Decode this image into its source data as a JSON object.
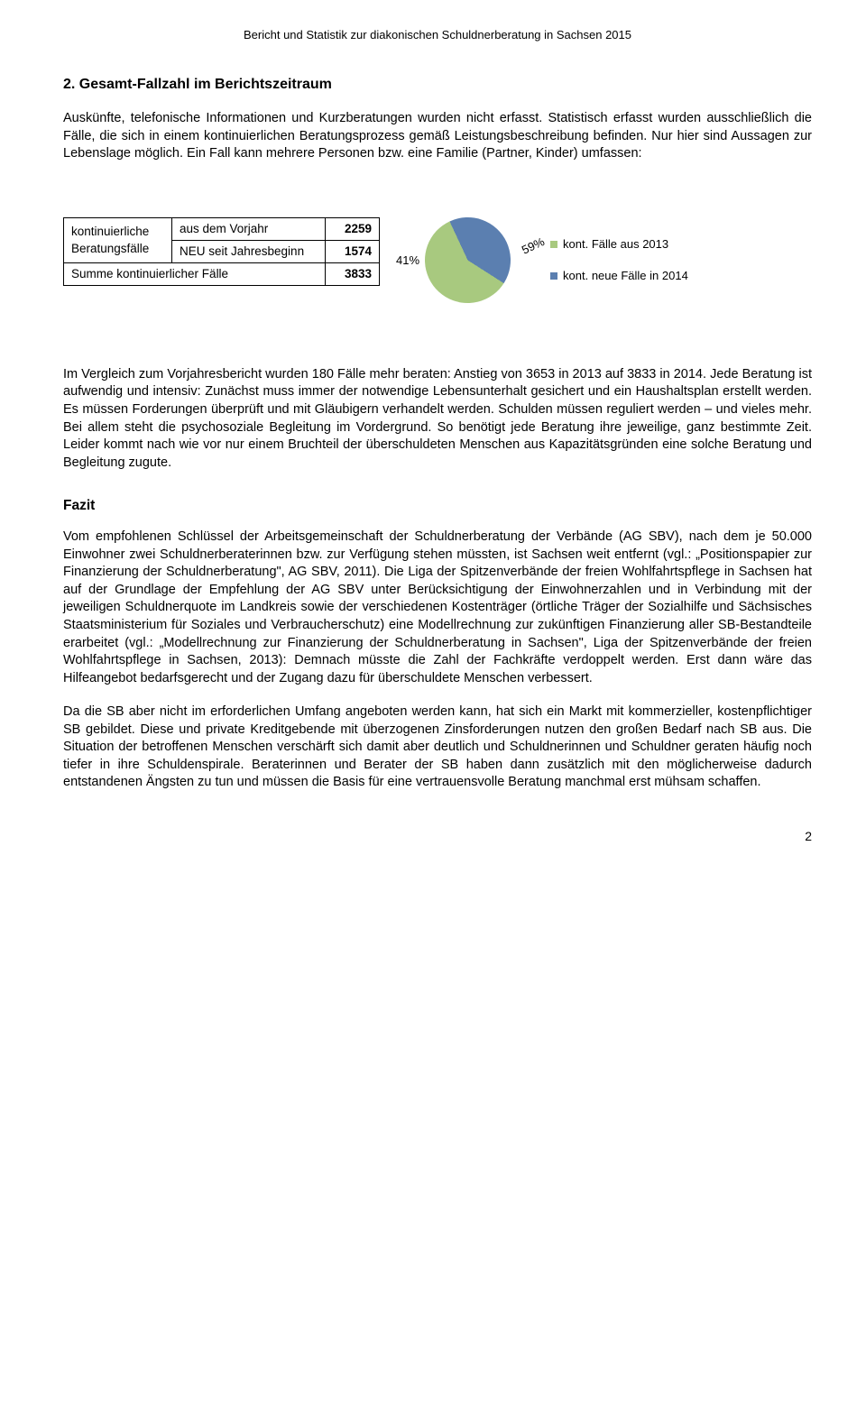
{
  "header": "Bericht und Statistik zur diakonischen Schuldnerberatung in Sachsen 2015",
  "section_title": "2. Gesamt-Fallzahl im Berichtszeitraum",
  "intro_para": "Auskünfte, telefonische Informationen und Kurzberatungen wurden nicht erfasst. Statistisch erfasst wurden ausschließlich die Fälle, die sich in einem kontinuierlichen Beratungsprozess gemäß Leistungsbeschreibung befinden. Nur hier sind Aussagen zur Lebenslage möglich. Ein Fall kann mehrere Personen bzw. eine Familie (Partner, Kinder) umfassen:",
  "table": {
    "row_label": "kontinuierliche Beratungsfälle",
    "rows": [
      {
        "label": "aus dem Vorjahr",
        "value": "2259"
      },
      {
        "label": "NEU seit Jahresbeginn",
        "value": "1574"
      }
    ],
    "sum_label": "Summe kontinuierlicher Fälle",
    "sum_value": "3833"
  },
  "pie": {
    "label_41": "41%",
    "label_59": "59%",
    "slice_59_color": "#a8c97f",
    "slice_41_color": "#5b7fb0",
    "slice_59_deg": 212.4,
    "legend": [
      {
        "color": "#a8c97f",
        "text": "kont. Fälle aus 2013"
      },
      {
        "color": "#5b7fb0",
        "text": "kont. neue Fälle in 2014"
      }
    ]
  },
  "para2": "Im Vergleich zum Vorjahresbericht wurden 180 Fälle mehr beraten: Anstieg von 3653 in 2013 auf 3833 in 2014. Jede Beratung ist aufwendig und intensiv: Zunächst muss immer der notwendige Lebensunterhalt gesichert und ein Haushaltsplan erstellt werden. Es müssen Forderungen überprüft und mit Gläubigern verhandelt werden. Schulden müssen reguliert werden – und vieles mehr. Bei allem steht die psychosoziale Begleitung im Vordergrund. So benötigt jede Beratung ihre jeweilige, ganz bestimmte Zeit. Leider kommt nach wie vor nur einem Bruchteil der überschuldeten Menschen aus Kapazitätsgründen eine solche Beratung und Begleitung zugute.",
  "fazit_title": "Fazit",
  "para3": "Vom empfohlenen Schlüssel der Arbeitsgemeinschaft der Schuldnerberatung der Verbände (AG SBV), nach dem je 50.000 Einwohner zwei Schuldnerberaterinnen bzw. zur Verfügung stehen müssten, ist Sachsen weit entfernt (vgl.: „Positionspapier zur Finanzierung der Schuldnerberatung\", AG SBV, 2011). Die Liga der Spitzenverbände der freien Wohlfahrtspflege in Sachsen hat auf der Grundlage der Empfehlung der AG SBV unter Berücksichtigung der Einwohnerzahlen und in Verbindung mit der jeweiligen Schuldnerquote im Landkreis sowie der verschiedenen Kostenträger (örtliche Träger der Sozialhilfe und Sächsisches Staatsministerium für Soziales und Verbraucherschutz) eine Modellrechnung zur zukünftigen Finanzierung aller SB-Bestandteile erarbeitet (vgl.: „Modellrechnung zur Finanzierung der Schuldnerberatung in Sachsen\", Liga der Spitzenverbände der freien Wohlfahrtspflege in Sachsen, 2013): Demnach müsste die Zahl der Fachkräfte verdoppelt werden. Erst dann wäre das Hilfeangebot bedarfsgerecht und der Zugang dazu für überschuldete Menschen verbessert.",
  "para4": "Da die SB aber nicht im erforderlichen Umfang angeboten werden kann, hat sich ein Markt mit kommerzieller, kostenpflichtiger SB gebildet. Diese und private Kreditgebende mit überzogenen Zinsforderungen nutzen den großen Bedarf nach SB aus. Die Situation der betroffenen Menschen verschärft sich damit aber deutlich und Schuldnerinnen und Schuldner geraten häufig noch tiefer in ihre Schuldenspirale. Beraterinnen und Berater der SB haben dann zusätzlich mit den möglicherweise dadurch entstandenen Ängsten zu tun und müssen die Basis für eine vertrauensvolle Beratung manchmal erst mühsam schaffen.",
  "page_number": "2"
}
